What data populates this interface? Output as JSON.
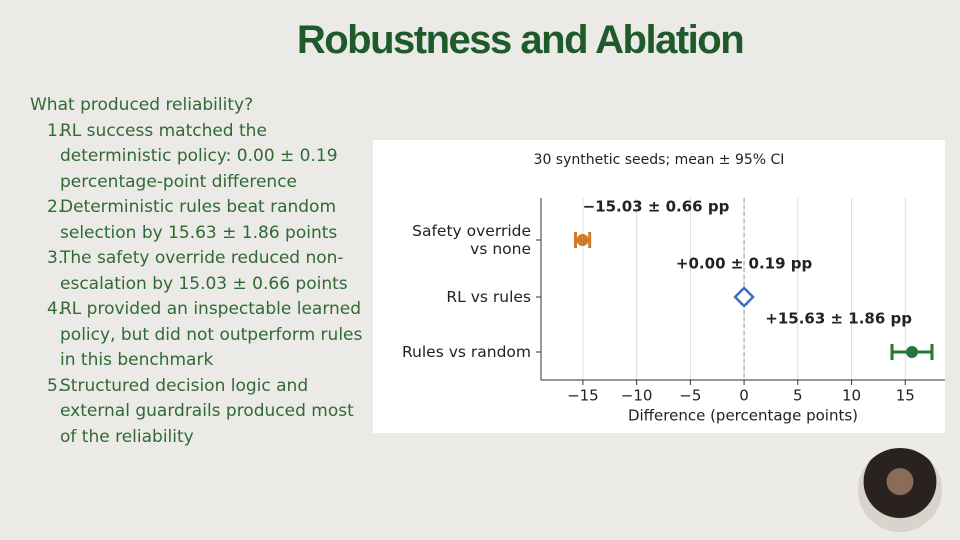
{
  "slide": {
    "title": "Robustness and Ablation",
    "question": "What produced reliability?",
    "items": [
      {
        "marker": "1.",
        "text": "RL success matched the deterministic policy: 0.00 ± 0.19 percentage-point difference"
      },
      {
        "marker": "2.",
        "text": "Deterministic rules beat random selection by 15.63 ± 1.86 points"
      },
      {
        "marker": "3.",
        "text": "The safety override reduced non-escalation by 15.03 ± 0.66 points"
      },
      {
        "marker": "4.",
        "text": "RL provided an inspectable learned policy, but did not outperform rules in this benchmark"
      },
      {
        "marker": "5.",
        "text": "Structured decision logic and external guardrails produced most of the reliability"
      }
    ]
  },
  "chart_data": {
    "type": "errorbar",
    "subtitle": "30 synthetic seeds; mean ± 95% CI",
    "x_label": "Difference (percentage points)",
    "categories": [
      "Safety override\nvs none",
      "RL vs rules",
      "Rules vs random"
    ],
    "values": [
      -15.03,
      0.0,
      15.63
    ],
    "errors": [
      0.66,
      0.19,
      1.86
    ],
    "value_labels": [
      "−15.03 ± 0.66 pp",
      "+0.00 ± 0.19 pp",
      "+15.63 ± 1.86 pp"
    ],
    "colors": [
      "#d07a2c",
      "#3b6fc2",
      "#23773a"
    ],
    "markers": [
      "circle",
      "diamond-open",
      "circle"
    ],
    "xlim": [
      -18.9,
      18.7
    ],
    "xticks": [
      {
        "value": -15,
        "label": "−15"
      },
      {
        "value": -10,
        "label": "−10"
      },
      {
        "value": -5,
        "label": "−5"
      },
      0,
      5,
      10,
      15
    ],
    "grid": true
  }
}
